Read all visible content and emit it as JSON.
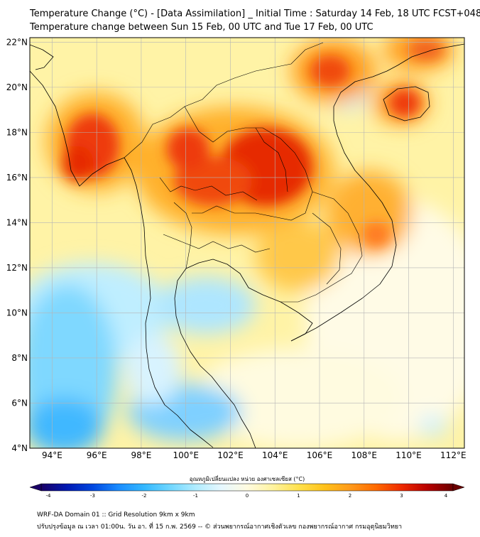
{
  "title_line1": "Temperature Change (°C) - [Data Assimilation] _ Initial Time : Saturday 14 Feb, 18 UTC FCST+048",
  "title_line2": "Temperature change between Sun 15 Feb, 00 UTC and Tue 17 Feb, 00 UTC",
  "map": {
    "lon_range": [
      93,
      112.5
    ],
    "lat_range": [
      4,
      22.2
    ],
    "lon_ticks": [
      "94°E",
      "96°E",
      "98°E",
      "100°E",
      "102°E",
      "104°E",
      "106°E",
      "108°E",
      "110°E",
      "112°E"
    ],
    "lat_ticks": [
      "4°N",
      "6°N",
      "8°N",
      "10°N",
      "12°N",
      "14°N",
      "16°N",
      "18°N",
      "20°N",
      "22°N"
    ],
    "grid": true
  },
  "colorbar": {
    "label": "อุณหภูมิเปลี่ยนแปลง หน่วย องศาเซลเซียส (°C)",
    "min": -4,
    "max": 4,
    "ticks": [
      "-4",
      "-3",
      "-2",
      "-1",
      "0",
      "1",
      "2",
      "3",
      "4"
    ],
    "colors": [
      "#1a0066",
      "#0019b3",
      "#0047e0",
      "#1a8cff",
      "#33b8ff",
      "#6fd6ff",
      "#b0ecff",
      "#e6f8ff",
      "#fffbe0",
      "#fff3a0",
      "#ffe14d",
      "#ffc21a",
      "#ff9a1a",
      "#ff6a00",
      "#ee2a00",
      "#b80000",
      "#6b0000"
    ]
  },
  "footer_line1": "WRF-DA Domain 01 :: Grid Resolution 9km x 9km",
  "footer_line2": "ปรับปรุงข้อมูล ณ เวลา 01:00น. วัน อา. ที่ 15 ก.พ. 2569 -- © ส่วนพยากรณ์อากาศเชิงตัวเลข กองพยากรณ์อากาศ กรมอุตุนิยมวิทยา"
}
